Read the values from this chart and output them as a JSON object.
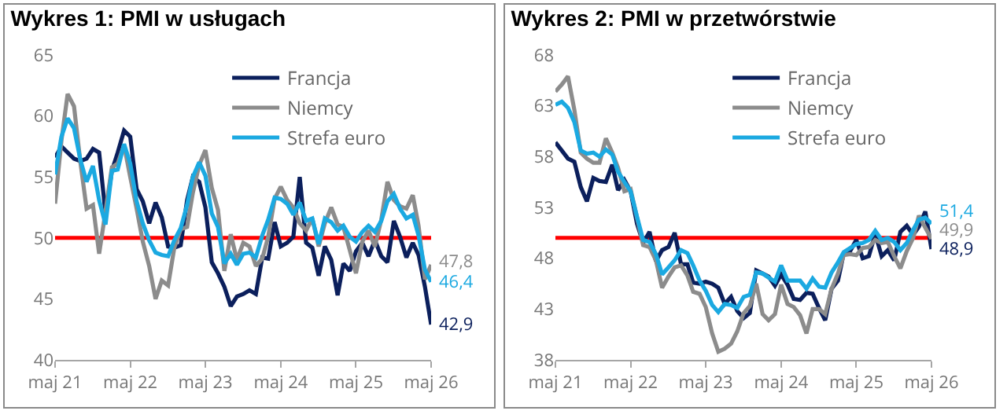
{
  "chart_data": [
    {
      "type": "line",
      "title": "Wykres 1: PMI w usługach",
      "legend": "top",
      "grid": false,
      "line_style": "solid",
      "marker": "none",
      "x": [
        "2021-05",
        "2021-06",
        "2021-07",
        "2021-08",
        "2021-09",
        "2021-10",
        "2021-11",
        "2021-12",
        "2022-01",
        "2022-02",
        "2022-03",
        "2022-04",
        "2022-05",
        "2022-06",
        "2022-07",
        "2022-08",
        "2022-09",
        "2022-10",
        "2022-11",
        "2022-12",
        "2023-01",
        "2023-02",
        "2023-03",
        "2023-04",
        "2023-05",
        "2023-06",
        "2023-07",
        "2023-08",
        "2023-09",
        "2023-10",
        "2023-11",
        "2023-12",
        "2024-01",
        "2024-02",
        "2024-03",
        "2024-04",
        "2024-05",
        "2024-06",
        "2024-07",
        "2024-08",
        "2024-09",
        "2024-10",
        "2024-11",
        "2024-12",
        "2025-01",
        "2025-02",
        "2025-03",
        "2025-04",
        "2025-05",
        "2025-06",
        "2025-07",
        "2025-08",
        "2025-09",
        "2025-10",
        "2025-11",
        "2025-12",
        "2026-01",
        "2026-02",
        "2026-03",
        "2026-04",
        "2026-05"
      ],
      "series": [
        {
          "name": "Francja",
          "color": "#0b1f5c",
          "values": [
            56.6,
            57.5,
            57.0,
            56.5,
            56.3,
            56.5,
            57.3,
            57.0,
            52.0,
            55.5,
            57.0,
            58.8,
            58.3,
            54.0,
            53.0,
            51.2,
            52.9,
            51.7,
            49.3,
            49.2,
            49.4,
            53.1,
            55.0,
            54.6,
            52.5,
            48.0,
            47.1,
            46.0,
            44.4,
            45.2,
            45.4,
            45.7,
            45.4,
            48.4,
            48.3,
            51.3,
            49.3,
            49.6,
            50.1,
            55.0,
            49.6,
            49.2,
            46.9,
            49.3,
            48.2,
            45.3,
            47.9,
            47.3,
            48.9,
            49.6,
            48.5,
            49.8,
            48.5,
            48.0,
            51.4,
            50.1,
            48.4,
            49.6,
            48.6,
            46.0,
            42.9
          ]
        },
        {
          "name": "Niemcy",
          "color": "#8c8c8c",
          "values": [
            52.8,
            58.0,
            61.8,
            60.8,
            56.2,
            52.4,
            52.7,
            48.7,
            52.2,
            55.8,
            56.1,
            57.6,
            55.0,
            52.4,
            49.7,
            47.7,
            45.0,
            46.5,
            46.1,
            49.2,
            50.7,
            50.9,
            53.7,
            56.0,
            57.2,
            54.1,
            52.3,
            47.3,
            50.3,
            48.2,
            49.6,
            49.3,
            47.7,
            48.3,
            50.1,
            53.2,
            54.2,
            53.1,
            52.5,
            51.2,
            50.6,
            51.6,
            49.3,
            51.2,
            52.5,
            51.1,
            50.9,
            49.0,
            47.1,
            49.7,
            50.6,
            49.3,
            51.5,
            54.6,
            53.1,
            52.6,
            52.4,
            53.5,
            51.0,
            46.6,
            47.8
          ]
        },
        {
          "name": "Strefa euro",
          "color": "#1ba9e1",
          "values": [
            55.2,
            58.3,
            59.8,
            59.0,
            56.4,
            54.6,
            55.9,
            53.1,
            51.1,
            55.5,
            55.6,
            57.7,
            56.1,
            53.0,
            51.2,
            49.8,
            48.8,
            48.6,
            48.5,
            49.8,
            50.8,
            52.7,
            55.0,
            56.2,
            55.1,
            52.0,
            50.9,
            47.9,
            48.7,
            47.8,
            48.7,
            48.8,
            48.4,
            50.2,
            51.5,
            53.3,
            53.2,
            52.8,
            51.9,
            52.9,
            51.4,
            51.6,
            49.5,
            51.6,
            51.3,
            50.6,
            51.0,
            50.1,
            49.7,
            50.5,
            51.0,
            50.5,
            51.4,
            53.0,
            53.6,
            52.4,
            51.6,
            51.9,
            50.2,
            47.4,
            46.4
          ]
        }
      ],
      "annotations": [
        {
          "text": "42,9",
          "x": "2026-05",
          "y": 42.9
        },
        {
          "text": "47,8",
          "x": "2026-05",
          "y": 47.8
        },
        {
          "text": "46,4",
          "x": "2026-05",
          "y": 46.4
        }
      ],
      "ref_lines": [
        {
          "axis": "y",
          "value": 50,
          "color": "#ff0000"
        }
      ],
      "xlim": [
        "2021-05",
        "2026-05"
      ],
      "xticks": [
        {
          "value": "2021-05",
          "label": "maj 21"
        },
        {
          "value": "2022-05",
          "label": "maj 22"
        },
        {
          "value": "2023-05",
          "label": "maj 23"
        },
        {
          "value": "2024-05",
          "label": "maj 24"
        },
        {
          "value": "2025-05",
          "label": "maj 25"
        },
        {
          "value": "2026-05",
          "label": "maj 26"
        }
      ],
      "ylim": [
        40,
        65
      ],
      "yticks": [
        40,
        45,
        50,
        55,
        60,
        65
      ]
    },
    {
      "type": "line",
      "title": "Wykres 2: PMI w przetwórstwie",
      "legend": "top",
      "grid": false,
      "line_style": "solid",
      "marker": "none",
      "x": [
        "2021-05",
        "2021-06",
        "2021-07",
        "2021-08",
        "2021-09",
        "2021-10",
        "2021-11",
        "2021-12",
        "2022-01",
        "2022-02",
        "2022-03",
        "2022-04",
        "2022-05",
        "2022-06",
        "2022-07",
        "2022-08",
        "2022-09",
        "2022-10",
        "2022-11",
        "2022-12",
        "2023-01",
        "2023-02",
        "2023-03",
        "2023-04",
        "2023-05",
        "2023-06",
        "2023-07",
        "2023-08",
        "2023-09",
        "2023-10",
        "2023-11",
        "2023-12",
        "2024-01",
        "2024-02",
        "2024-03",
        "2024-04",
        "2024-05",
        "2024-06",
        "2024-07",
        "2024-08",
        "2024-09",
        "2024-10",
        "2024-11",
        "2024-12",
        "2025-01",
        "2025-02",
        "2025-03",
        "2025-04",
        "2025-05",
        "2025-06",
        "2025-07",
        "2025-08",
        "2025-09",
        "2025-10",
        "2025-11",
        "2025-12",
        "2026-01",
        "2026-02",
        "2026-03",
        "2026-04",
        "2026-05"
      ],
      "series": [
        {
          "name": "Francja",
          "color": "#0b1f5c",
          "values": [
            59.4,
            58.6,
            57.8,
            57.5,
            55.0,
            53.6,
            55.9,
            55.6,
            55.5,
            57.2,
            54.7,
            55.7,
            54.6,
            51.4,
            49.5,
            50.6,
            47.7,
            48.8,
            49.1,
            50.5,
            47.4,
            47.4,
            45.6,
            45.5,
            45.7,
            45.5,
            45.1,
            43.5,
            44.2,
            42.8,
            42.1,
            42.6,
            46.8,
            46.5,
            46.2,
            45.3,
            46.4,
            45.4,
            44.0,
            43.9,
            44.6,
            44.5,
            43.1,
            41.9,
            45.0,
            45.8,
            48.5,
            48.7,
            49.8,
            48.0,
            48.2,
            50.4,
            48.2,
            48.8,
            47.8,
            50.6,
            51.2,
            50.3,
            51.1,
            52.6,
            48.9
          ]
        },
        {
          "name": "Niemcy",
          "color": "#8c8c8c",
          "values": [
            64.4,
            65.1,
            65.9,
            62.6,
            58.4,
            57.8,
            57.4,
            57.4,
            59.8,
            58.4,
            56.9,
            54.6,
            54.8,
            52.0,
            49.3,
            49.1,
            47.8,
            45.1,
            46.2,
            47.1,
            47.3,
            46.3,
            44.7,
            44.5,
            43.2,
            40.6,
            38.8,
            39.1,
            39.6,
            40.8,
            42.6,
            43.3,
            45.5,
            42.5,
            41.9,
            42.5,
            45.4,
            43.5,
            43.2,
            42.4,
            40.6,
            43.0,
            43.0,
            42.5,
            45.0,
            46.5,
            48.3,
            48.4,
            48.3,
            49.0,
            49.1,
            49.8,
            49.5,
            49.6,
            48.2,
            47.0,
            48.7,
            50.0,
            52.2,
            51.0,
            49.9
          ]
        },
        {
          "name": "Strefa euro",
          "color": "#1ba9e1",
          "values": [
            63.1,
            63.4,
            62.8,
            61.4,
            58.6,
            58.3,
            58.4,
            58.0,
            58.7,
            58.2,
            56.5,
            55.5,
            54.6,
            52.1,
            49.8,
            49.6,
            48.4,
            46.4,
            47.1,
            47.8,
            48.8,
            48.5,
            47.3,
            45.8,
            44.8,
            43.4,
            42.7,
            43.5,
            43.4,
            43.1,
            44.2,
            44.4,
            46.6,
            46.5,
            46.1,
            45.7,
            47.3,
            45.8,
            45.8,
            45.8,
            45.0,
            46.0,
            45.2,
            45.1,
            46.6,
            47.6,
            48.6,
            49.0,
            49.4,
            49.5,
            49.8,
            50.7,
            49.8,
            50.0,
            49.6,
            48.8,
            49.5,
            50.8,
            51.8,
            52.0,
            51.4
          ]
        }
      ],
      "annotations": [
        {
          "text": "48,9",
          "x": "2026-05",
          "y": 48.9
        },
        {
          "text": "49,9",
          "x": "2026-05",
          "y": 49.9
        },
        {
          "text": "51,4",
          "x": "2026-05",
          "y": 51.4
        }
      ],
      "ref_lines": [
        {
          "axis": "y",
          "value": 50,
          "color": "#ff0000"
        }
      ],
      "xlim": [
        "2021-05",
        "2026-05"
      ],
      "xticks": [
        {
          "value": "2021-05",
          "label": "maj 21"
        },
        {
          "value": "2022-05",
          "label": "maj 22"
        },
        {
          "value": "2023-05",
          "label": "maj 23"
        },
        {
          "value": "2024-05",
          "label": "maj 24"
        },
        {
          "value": "2025-05",
          "label": "maj 25"
        },
        {
          "value": "2026-05",
          "label": "maj 26"
        }
      ],
      "ylim": [
        38,
        68
      ],
      "yticks": [
        38,
        43,
        48,
        53,
        58,
        63,
        68
      ]
    }
  ]
}
